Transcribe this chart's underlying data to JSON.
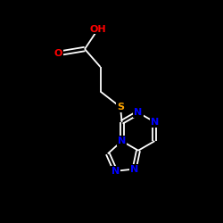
{
  "bg_color": "#000000",
  "bond_color": "#ffffff",
  "atom_colors": {
    "O": "#ff0000",
    "N": "#0000ff",
    "S": "#ffa500",
    "C": "#ffffff"
  },
  "lw": 1.3,
  "fontsize": 8,
  "figsize": [
    2.5,
    2.5
  ],
  "dpi": 100
}
